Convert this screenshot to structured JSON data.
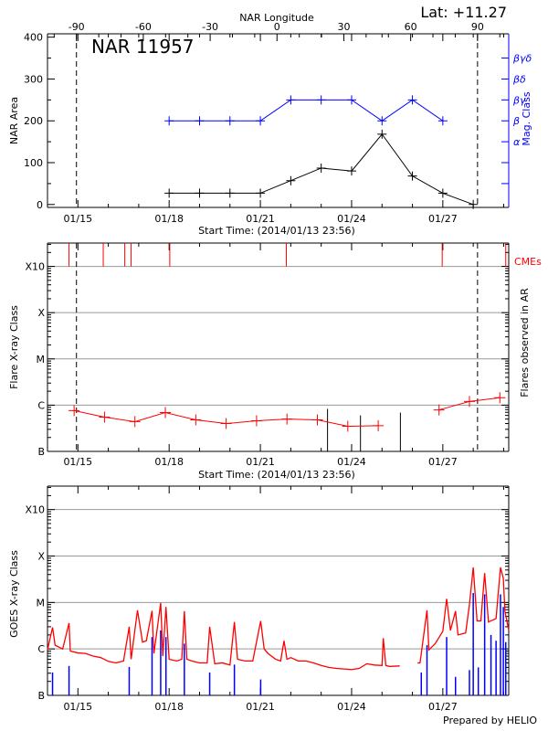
{
  "lat_label": "Lat: +11.27",
  "region_label": "NAR 11957",
  "footer": "Prepared by HELIO",
  "colors": {
    "area": "#000000",
    "mag_class": "#0000ff",
    "flare": "#ff0000",
    "cme": "#ff0000",
    "goes_long": "#ff0000",
    "goes_short": "#0000ff",
    "grid": "#999999"
  },
  "chart_data": [
    {
      "type": "line",
      "xlabel": "Start Time: (2014/01/13 23:56)",
      "xlim": [
        "2014-01-14T00:00",
        "2014-01-29T04:00"
      ],
      "x_ticks": [
        {
          "date": "2014-01-15T00:00",
          "label": "01/15"
        },
        {
          "date": "2014-01-18T00:00",
          "label": "01/18"
        },
        {
          "date": "2014-01-21T00:00",
          "label": "01/21"
        },
        {
          "date": "2014-01-24T00:00",
          "label": "01/24"
        },
        {
          "date": "2014-01-27T00:00",
          "label": "01/27"
        }
      ],
      "top_axis": {
        "label": "NAR Longitude",
        "lim": [
          -103,
          104
        ],
        "ticks": [
          "-90",
          "-60",
          "-30",
          "0",
          "30",
          "60",
          "90"
        ]
      },
      "limb_longitudes": [
        -90,
        90
      ],
      "ylabel": "NAR Area",
      "ylim": [
        -7,
        408
      ],
      "y_ticks": [
        "0",
        "100",
        "200",
        "300",
        "400"
      ],
      "y2label": "Mag. Class",
      "y2_categories": [
        "",
        "",
        "α",
        "β",
        "βγ",
        "βδ",
        "βγδ"
      ],
      "series": [
        {
          "key": "area",
          "x": [
            "2014-01-18T00:00",
            "2014-01-19T00:00",
            "2014-01-20T00:00",
            "2014-01-21T00:00",
            "2014-01-22T00:00",
            "2014-01-23T00:00",
            "2014-01-24T00:00",
            "2014-01-25T00:00",
            "2014-01-26T00:00",
            "2014-01-27T00:00",
            "2014-01-28T00:00"
          ],
          "values": [
            27,
            27,
            27,
            27,
            57,
            87,
            80,
            168,
            68,
            27,
            0
          ]
        },
        {
          "key": "mag_class",
          "x": [
            "2014-01-18T00:00",
            "2014-01-19T00:00",
            "2014-01-20T00:00",
            "2014-01-21T00:00",
            "2014-01-22T00:00",
            "2014-01-23T00:00",
            "2014-01-24T00:00",
            "2014-01-25T00:00",
            "2014-01-26T00:00",
            "2014-01-27T00:00"
          ],
          "values": [
            "β",
            "β",
            "β",
            "β",
            "βγ",
            "βγ",
            "βγ",
            "β",
            "βγ",
            "β"
          ]
        }
      ]
    },
    {
      "type": "line",
      "xlabel": "Start Time: (2014/01/13 23:56)",
      "ylabel": "Flare X-ray Class",
      "y2label": "Flares observed in AR",
      "cme_label": "CMEs",
      "ylim": [
        1e-07,
        0.0032
      ],
      "y_ticks": [
        "B",
        "C",
        "M",
        "X",
        "X10"
      ],
      "grid": true,
      "series": [
        {
          "key": "flare_class",
          "x": [
            "2014-01-14T21:00",
            "2014-01-15T21:00",
            "2014-01-16T21:00",
            "2014-01-17T21:00",
            "2014-01-18T21:00",
            "2014-01-19T21:00",
            "2014-01-20T21:00",
            "2014-01-21T21:00",
            "2014-01-22T21:00",
            "2014-01-23T21:00",
            "2014-01-24T21:00",
            "2014-01-26T21:00",
            "2014-01-27T21:00",
            "2014-01-28T21:00"
          ],
          "values": [
            "B7.6",
            "B5.5",
            "B4.4",
            "B6.9",
            "B4.8",
            "B4.0",
            "B4.6",
            "B5.0",
            "B4.8",
            "B3.5",
            "B3.6",
            "B7.9",
            "C1.2",
            "C1.45"
          ]
        }
      ],
      "flares": [
        {
          "date": "2014-01-23T05:00",
          "class": "B8.3"
        },
        {
          "date": "2014-01-24T07:00",
          "class": "B6.0"
        },
        {
          "date": "2014-01-25T14:30",
          "class": "B6.9"
        }
      ],
      "cmes": [
        "2014-01-14T17:00",
        "2014-01-15T20:00",
        "2014-01-16T13:00",
        "2014-01-16T18:00",
        "2014-01-18T00:30",
        "2014-01-21T20:30",
        "2014-01-26T23:30",
        "2014-01-29T01:40"
      ]
    },
    {
      "type": "line",
      "ylabel": "GOES X-ray Class",
      "ylim": [
        1e-07,
        0.0032
      ],
      "y_ticks": [
        "B",
        "C",
        "M",
        "X",
        "X10"
      ],
      "grid": true,
      "series": [
        {
          "key": "goes_long",
          "points": [
            [
              "2014-01-14T00:00",
              "B9.5"
            ],
            [
              "2014-01-14T04:00",
              "C2.9"
            ],
            [
              "2014-01-14T06:00",
              "C1.2"
            ],
            [
              "2014-01-14T12:00",
              "C1.0"
            ],
            [
              "2014-01-14T17:00",
              "C3.6"
            ],
            [
              "2014-01-14T18:00",
              "B9"
            ],
            [
              "2014-01-15T00:00",
              "B8.2"
            ],
            [
              "2014-01-15T06:00",
              "B8"
            ],
            [
              "2014-01-15T12:00",
              "B7"
            ],
            [
              "2014-01-15T18:00",
              "B6.5"
            ],
            [
              "2014-01-16T00:00",
              "B5.4"
            ],
            [
              "2014-01-16T06:00",
              "B5"
            ],
            [
              "2014-01-16T12:00",
              "B5.5"
            ],
            [
              "2014-01-16T16:30",
              "C3"
            ],
            [
              "2014-01-16T18:00",
              "B6"
            ],
            [
              "2014-01-16T23:00",
              "C6.8"
            ],
            [
              "2014-01-17T03:00",
              "C1.4"
            ],
            [
              "2014-01-17T06:00",
              "C1.5"
            ],
            [
              "2014-01-17T10:30",
              "C6.6"
            ],
            [
              "2014-01-17T12:00",
              "B8"
            ],
            [
              "2014-01-17T17:20",
              "C9.8"
            ],
            [
              "2014-01-17T19:00",
              "B7"
            ],
            [
              "2014-01-17T21:30",
              "C8"
            ],
            [
              "2014-01-18T00:00",
              "B6"
            ],
            [
              "2014-01-18T06:00",
              "B5.5"
            ],
            [
              "2014-01-18T10:00",
              "B6"
            ],
            [
              "2014-01-18T12:00",
              "C6.5"
            ],
            [
              "2014-01-18T14:00",
              "B6"
            ],
            [
              "2014-01-18T18:00",
              "B5.5"
            ],
            [
              "2014-01-19T00:00",
              "B5"
            ],
            [
              "2014-01-19T06:00",
              "B5"
            ],
            [
              "2014-01-19T08:00",
              "C3"
            ],
            [
              "2014-01-19T12:00",
              "B4.8"
            ],
            [
              "2014-01-19T18:00",
              "B5"
            ],
            [
              "2014-01-20T00:00",
              "B4.5"
            ],
            [
              "2014-01-20T03:30",
              "C3.8"
            ],
            [
              "2014-01-20T06:00",
              "B6"
            ],
            [
              "2014-01-20T12:00",
              "B5.5"
            ],
            [
              "2014-01-20T18:00",
              "B5.5"
            ],
            [
              "2014-01-21T00:15",
              "C4"
            ],
            [
              "2014-01-21T03:00",
              "C1"
            ],
            [
              "2014-01-21T06:00",
              "B8"
            ],
            [
              "2014-01-21T12:00",
              "B6"
            ],
            [
              "2014-01-21T16:00",
              "B5.5"
            ],
            [
              "2014-01-21T18:40",
              "C1.5"
            ],
            [
              "2014-01-21T21:00",
              "B6"
            ],
            [
              "2014-01-22T00:00",
              "B6.5"
            ],
            [
              "2014-01-22T06:00",
              "B5.5"
            ],
            [
              "2014-01-22T12:00",
              "B5.5"
            ],
            [
              "2014-01-22T18:00",
              "B5"
            ],
            [
              "2014-01-23T00:00",
              "B4.4"
            ],
            [
              "2014-01-23T06:00",
              "B4"
            ],
            [
              "2014-01-23T12:00",
              "B3.8"
            ],
            [
              "2014-01-23T18:00",
              "B3.7"
            ],
            [
              "2014-01-24T00:00",
              "B3.6"
            ],
            [
              "2014-01-24T06:00",
              "B3.8"
            ],
            [
              "2014-01-24T12:00",
              "B4.8"
            ],
            [
              "2014-01-24T18:00",
              "B4.5"
            ],
            [
              "2014-01-25T00:00",
              "B4.4"
            ],
            [
              "2014-01-25T01:00",
              "C1.7"
            ],
            [
              "2014-01-25T03:00",
              "B4.4"
            ],
            [
              "2014-01-25T06:00",
              "B4.2"
            ],
            [
              "2014-01-25T14:00",
              "B4.3"
            ],
            [
              "2014-01-25T20:00",
              null
            ],
            [
              "2014-01-26T04:00",
              "B5"
            ],
            [
              "2014-01-26T06:00",
              "B5"
            ],
            [
              "2014-01-26T11:30",
              "C6.8"
            ],
            [
              "2014-01-26T13:00",
              "B9.5"
            ],
            [
              "2014-01-26T18:00",
              "C1.3"
            ],
            [
              "2014-01-27T00:00",
              "C2.4"
            ],
            [
              "2014-01-27T03:00",
              "M1.2"
            ],
            [
              "2014-01-27T06:00",
              "C2.5"
            ],
            [
              "2014-01-27T10:00",
              "C6.5"
            ],
            [
              "2014-01-27T12:00",
              "C2"
            ],
            [
              "2014-01-27T18:00",
              "C2.2"
            ],
            [
              "2014-01-27T21:00",
              "C9"
            ],
            [
              "2014-01-28T00:00",
              "M5.7"
            ],
            [
              "2014-01-28T03:00",
              "C4"
            ],
            [
              "2014-01-28T06:00",
              "C4"
            ],
            [
              "2014-01-28T09:00",
              "M4.3"
            ],
            [
              "2014-01-28T12:00",
              "C3.8"
            ],
            [
              "2014-01-28T18:00",
              "C4.5"
            ],
            [
              "2014-01-28T21:30",
              "M5.7"
            ],
            [
              "2014-01-28T23:45",
              "M3.3"
            ],
            [
              "2014-01-29T01:00",
              "C6.5"
            ],
            [
              "2014-01-29T04:00",
              "C2.5"
            ]
          ]
        },
        {
          "key": "goes_short",
          "points": [
            [
              "2014-01-14T04:00",
              "B3.1"
            ],
            [
              "2014-01-14T17:00",
              "B4.3"
            ],
            [
              "2014-01-16T16:30",
              "B4.1"
            ],
            [
              "2014-01-17T10:30",
              "C1.8"
            ],
            [
              "2014-01-17T17:20",
              "C2.5"
            ],
            [
              "2014-01-17T21:30",
              "C1.8"
            ],
            [
              "2014-01-18T12:00",
              "C1.3"
            ],
            [
              "2014-01-19T08:00",
              "B3.1"
            ],
            [
              "2014-01-20T03:30",
              "B4.6"
            ],
            [
              "2014-01-21T00:15",
              "B2.2"
            ],
            [
              "2014-01-26T07:00",
              "B3.1"
            ],
            [
              "2014-01-26T11:30",
              "C1.2"
            ],
            [
              "2014-01-27T03:00",
              "C1.8"
            ],
            [
              "2014-01-27T10:00",
              "B2.5"
            ],
            [
              "2014-01-27T21:00",
              "B3.5"
            ],
            [
              "2014-01-28T00:00",
              "M1.6"
            ],
            [
              "2014-01-28T04:00",
              "B4"
            ],
            [
              "2014-01-28T09:00",
              "M1.5"
            ],
            [
              "2014-01-28T14:00",
              "C2"
            ],
            [
              "2014-01-28T18:00",
              "C1.5"
            ],
            [
              "2014-01-28T21:30",
              "M1.5"
            ],
            [
              "2014-01-28T23:45",
              "C8"
            ],
            [
              "2014-01-29T01:40",
              "C1.4"
            ]
          ]
        }
      ]
    }
  ]
}
